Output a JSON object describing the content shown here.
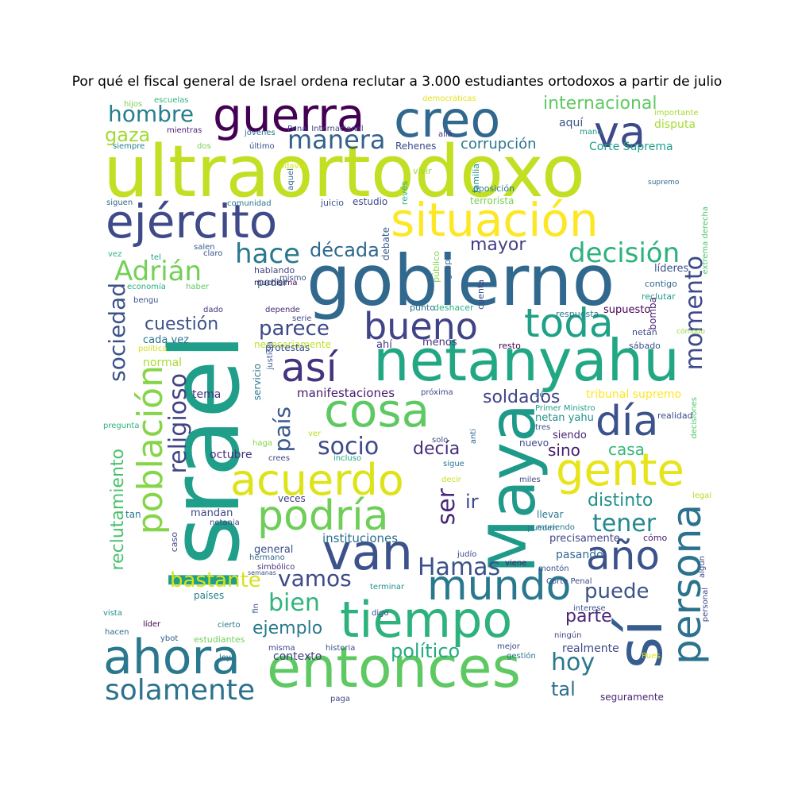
{
  "title": "Por qué el fiscal general de Israel ordena reclutar a 3.000 estudiantes ortodoxos a partir de julio",
  "colors": {
    "background": "#ffffff",
    "title": "#000000"
  },
  "words": [
    {
      "text": "ultraortodoxo",
      "color": "#c2df23"
    },
    {
      "text": "Israel",
      "color": "#1f9e89"
    },
    {
      "text": "gobierno",
      "color": "#31688e"
    },
    {
      "text": "netanyahu",
      "color": "#22a785"
    },
    {
      "text": "Maya",
      "color": "#1f9a8a"
    },
    {
      "text": "entonces",
      "color": "#5ec962"
    },
    {
      "text": "sí",
      "color": "#365d8d"
    },
    {
      "text": "tiempo",
      "color": "#2db27d"
    },
    {
      "text": "ahora",
      "color": "#2a788e"
    },
    {
      "text": "creo",
      "color": "#31688e"
    },
    {
      "text": "van",
      "color": "#3b528b"
    },
    {
      "text": "guerra",
      "color": "#440154"
    },
    {
      "text": "situación",
      "color": "#fde725"
    },
    {
      "text": "ejército",
      "color": "#3e4a89"
    },
    {
      "text": "cosa",
      "color": "#5ec962"
    },
    {
      "text": "gente",
      "color": "#e7e419"
    },
    {
      "text": "persona",
      "color": "#2c728e"
    },
    {
      "text": "acuerdo",
      "color": "#dde318"
    },
    {
      "text": "mundo",
      "color": "#2a788e"
    },
    {
      "text": "podría",
      "color": "#6ece58"
    },
    {
      "text": "año",
      "color": "#3b528b"
    },
    {
      "text": "va",
      "color": "#3e4989"
    },
    {
      "text": "así",
      "color": "#46337f"
    },
    {
      "text": "bueno",
      "color": "#404387"
    },
    {
      "text": "toda",
      "color": "#1fa187"
    },
    {
      "text": "día",
      "color": "#3b528b"
    },
    {
      "text": "población",
      "color": "#86d549"
    },
    {
      "text": "solamente",
      "color": "#2c728e"
    },
    {
      "text": "hace",
      "color": "#2a788e"
    },
    {
      "text": "manera",
      "color": "#34618d"
    },
    {
      "text": "hombre",
      "color": "#277f8e"
    },
    {
      "text": "Adrián",
      "color": "#73d056"
    },
    {
      "text": "decisión",
      "color": "#2db27d"
    },
    {
      "text": "momento",
      "color": "#3e4989"
    },
    {
      "text": "religioso",
      "color": "#414487"
    },
    {
      "text": "sociedad",
      "color": "#3b528b"
    },
    {
      "text": "socio",
      "color": "#3e4a89"
    },
    {
      "text": "tener",
      "color": "#23898e"
    },
    {
      "text": "Hamas",
      "color": "#3b528b"
    },
    {
      "text": "país",
      "color": "#38598c"
    },
    {
      "text": "parece",
      "color": "#3e4989"
    },
    {
      "text": "vamos",
      "color": "#3e4a89"
    },
    {
      "text": "bien",
      "color": "#2fb47c"
    },
    {
      "text": "hoy",
      "color": "#2a788e"
    },
    {
      "text": "puede",
      "color": "#3b528b"
    },
    {
      "text": "bastante",
      "color": "#d8e219"
    },
    {
      "text": "ser",
      "color": "#482878"
    },
    {
      "text": "reclutamiento",
      "color": "#4ac16d"
    },
    {
      "text": "década",
      "color": "#31688e"
    },
    {
      "text": "mayor",
      "color": "#433e85"
    },
    {
      "text": "cuestión",
      "color": "#3b528b"
    },
    {
      "text": "soldados",
      "color": "#404387"
    },
    {
      "text": "gaza",
      "color": "#a2da37"
    },
    {
      "text": "internacional",
      "color": "#5ec962"
    },
    {
      "text": "corrupción",
      "color": "#2a788e"
    },
    {
      "text": "político",
      "color": "#25ab82"
    },
    {
      "text": "ejemplo",
      "color": "#2a788e"
    },
    {
      "text": "parte",
      "color": "#482878"
    },
    {
      "text": "distinto",
      "color": "#21918c"
    },
    {
      "text": "casa",
      "color": "#34b679"
    },
    {
      "text": "sino",
      "color": "#481a6c"
    },
    {
      "text": "decía",
      "color": "#472c7a"
    },
    {
      "text": "ir",
      "color": "#3e4989"
    },
    {
      "text": "tal",
      "color": "#2e6e8e"
    },
    {
      "text": "aquí",
      "color": "#3b528b"
    },
    {
      "text": "Corte Suprema",
      "color": "#1f9e89"
    },
    {
      "text": "disputa",
      "color": "#a5db36"
    },
    {
      "text": "tribunal supremo",
      "color": "#fde725"
    },
    {
      "text": "octubre",
      "color": "#46327e"
    },
    {
      "text": "manifestaciones",
      "color": "#481b6d"
    },
    {
      "text": "instituciones",
      "color": "#2c718e"
    },
    {
      "text": "contexto",
      "color": "#433e85"
    },
    {
      "text": "pasando",
      "color": "#31688e"
    },
    {
      "text": "precisamente",
      "color": "#414487"
    },
    {
      "text": "seguramente",
      "color": "#482576"
    },
    {
      "text": "realmente",
      "color": "#3e4a89"
    },
    {
      "text": "general",
      "color": "#3b528b"
    },
    {
      "text": "tema",
      "color": "#46337f"
    },
    {
      "text": "normal",
      "color": "#a8db34"
    },
    {
      "text": "necesariamente",
      "color": "#bddf26"
    },
    {
      "text": "cada vez",
      "color": "#2c728e"
    },
    {
      "text": "poder",
      "color": "#2a788e"
    },
    {
      "text": "nuevo",
      "color": "#3e4989"
    },
    {
      "text": "siendo",
      "color": "#482475"
    },
    {
      "text": "netan yahu",
      "color": "#21918c"
    },
    {
      "text": "mandan",
      "color": "#3e4989"
    },
    {
      "text": "menos",
      "color": "#46337f"
    },
    {
      "text": "ahí",
      "color": "#453882"
    },
    {
      "text": "supuesto",
      "color": "#440154"
    },
    {
      "text": "bomba",
      "color": "#481f70"
    },
    {
      "text": "líderes",
      "color": "#3b528b"
    },
    {
      "text": "Rehenes",
      "color": "#3e4989"
    },
    {
      "text": "vivir",
      "color": "#a0da39"
    },
    {
      "text": "familia",
      "color": "#21918c"
    },
    {
      "text": "terrorista",
      "color": "#7ad151"
    },
    {
      "text": "oposición",
      "color": "#2a788e"
    },
    {
      "text": "estudio",
      "color": "#3e4989"
    },
    {
      "text": "juicio",
      "color": "#3b528b"
    },
    {
      "text": "revés",
      "color": "#2fb47c"
    },
    {
      "text": "público",
      "color": "#84d44b"
    },
    {
      "text": "grupo",
      "color": "#31688e"
    },
    {
      "text": "debate",
      "color": "#365c8d"
    },
    {
      "text": "mismo",
      "color": "#3b528b"
    },
    {
      "text": "muchísima",
      "color": "#440154"
    },
    {
      "text": "hablando",
      "color": "#414487"
    },
    {
      "text": "deshacer",
      "color": "#2ab07f"
    },
    {
      "text": "punto",
      "color": "#2c728e"
    },
    {
      "text": "cuenta",
      "color": "#3e4989"
    },
    {
      "text": "respuesta",
      "color": "#2a788e"
    },
    {
      "text": "reclutar",
      "color": "#1f9e89"
    },
    {
      "text": "contigo",
      "color": "#31688e"
    },
    {
      "text": "sábado",
      "color": "#3b528b"
    },
    {
      "text": "resto",
      "color": "#440154"
    },
    {
      "text": "netan",
      "color": "#3e4989"
    },
    {
      "text": "cómodo",
      "color": "#95d840"
    },
    {
      "text": "realidad",
      "color": "#3e4989"
    },
    {
      "text": "decisiones",
      "color": "#52c569"
    },
    {
      "text": "extrema derecha",
      "color": "#52c569"
    },
    {
      "text": "supremo",
      "color": "#31688e"
    },
    {
      "text": "mano",
      "color": "#21918c"
    },
    {
      "text": "importante",
      "color": "#a8db34"
    },
    {
      "text": "democráticas",
      "color": "#e5e419"
    },
    {
      "text": "escuelas",
      "color": "#34b679"
    },
    {
      "text": "hijos",
      "color": "#7ad151"
    },
    {
      "text": "mientras",
      "color": "#481f70"
    },
    {
      "text": "siempre",
      "color": "#277f8e"
    },
    {
      "text": "dos",
      "color": "#7ad151"
    },
    {
      "text": "jóvenes",
      "color": "#2c728e"
    },
    {
      "text": "Penal Internacional",
      "color": "#414487"
    },
    {
      "text": "último",
      "color": "#3b528b"
    },
    {
      "text": "allá",
      "color": "#453882"
    },
    {
      "text": "todavía",
      "color": "#dae319"
    },
    {
      "text": "aquel",
      "color": "#31688e"
    },
    {
      "text": "siguen",
      "color": "#31688e"
    },
    {
      "text": "comunidad",
      "color": "#2a788e"
    },
    {
      "text": "vez",
      "color": "#2db27d"
    },
    {
      "text": "tel",
      "color": "#1f9e89"
    },
    {
      "text": "salen",
      "color": "#365d8d"
    },
    {
      "text": "claro",
      "color": "#3b528b"
    },
    {
      "text": "economía",
      "color": "#27ad81"
    },
    {
      "text": "haber",
      "color": "#5ec962"
    },
    {
      "text": "bengu",
      "color": "#3b528b"
    },
    {
      "text": "dado",
      "color": "#46337f"
    },
    {
      "text": "depende",
      "color": "#482878"
    },
    {
      "text": "serie",
      "color": "#3e4989"
    },
    {
      "text": "política",
      "color": "#d0e11c"
    },
    {
      "text": "servicio",
      "color": "#2a788e"
    },
    {
      "text": "justicia",
      "color": "#3b528b"
    },
    {
      "text": "pregunta",
      "color": "#2db27d"
    },
    {
      "text": "ver",
      "color": "#b5de2b"
    },
    {
      "text": "haga",
      "color": "#86d549"
    },
    {
      "text": "crees",
      "color": "#3e4989"
    },
    {
      "text": "incluso",
      "color": "#22a785"
    },
    {
      "text": "solo",
      "color": "#3e4989"
    },
    {
      "text": "anti",
      "color": "#31688e"
    },
    {
      "text": "sé",
      "color": "#2c728e"
    },
    {
      "text": "tres",
      "color": "#3b528b"
    },
    {
      "text": "Primer Ministro",
      "color": "#1f9e89"
    },
    {
      "text": "próxima",
      "color": "#3e4989"
    },
    {
      "text": "sigue",
      "color": "#2a788e"
    },
    {
      "text": "decir",
      "color": "#c8e020"
    },
    {
      "text": "miles",
      "color": "#3e4989"
    },
    {
      "text": "legal",
      "color": "#b5de2b"
    },
    {
      "text": "veces",
      "color": "#433e85"
    },
    {
      "text": "tan",
      "color": "#2a788e"
    },
    {
      "text": "llevar",
      "color": "#2a788e"
    },
    {
      "text": "muriendo",
      "color": "#2a788e"
    },
    {
      "text": "netania",
      "color": "#3e4989"
    },
    {
      "text": "caso",
      "color": "#3e4989"
    },
    {
      "text": "pueden",
      "color": "#2a788e"
    },
    {
      "text": "cómo",
      "color": "#481a6c"
    },
    {
      "text": "hermano",
      "color": "#31688e"
    },
    {
      "text": "simbólico",
      "color": "#46337f"
    },
    {
      "text": "semanas",
      "color": "#3b528b"
    },
    {
      "text": "judío",
      "color": "#3e4989"
    },
    {
      "text": "viene",
      "color": "#481a6c"
    },
    {
      "text": "montón",
      "color": "#3b528b"
    },
    {
      "text": "algún",
      "color": "#3e4989"
    },
    {
      "text": "Corte Penal",
      "color": "#3e4989"
    },
    {
      "text": "terminar",
      "color": "#21918c"
    },
    {
      "text": "países",
      "color": "#277f8e"
    },
    {
      "text": "vista",
      "color": "#21918c"
    },
    {
      "text": "fin",
      "color": "#3b528b"
    },
    {
      "text": "digo",
      "color": "#3e4989"
    },
    {
      "text": "interese",
      "color": "#3b528b"
    },
    {
      "text": "personal",
      "color": "#3e4989"
    },
    {
      "text": "hacen",
      "color": "#31688e"
    },
    {
      "text": "líder",
      "color": "#440154"
    },
    {
      "text": "cierto",
      "color": "#2a788e"
    },
    {
      "text": "ningún",
      "color": "#3e4989"
    },
    {
      "text": "ybot",
      "color": "#34618d"
    },
    {
      "text": "estudiantes",
      "color": "#73d056"
    },
    {
      "text": "mejor",
      "color": "#3e4989"
    },
    {
      "text": "ley",
      "color": "#31688e"
    },
    {
      "text": "misma",
      "color": "#3e4989"
    },
    {
      "text": "historia",
      "color": "#3b528b"
    },
    {
      "text": "gestión",
      "color": "#2a788e"
    },
    {
      "text": "Pues",
      "color": "#e2e418"
    },
    {
      "text": "protestas",
      "color": "#3b528b"
    },
    {
      "text": "paga",
      "color": "#3e4989"
    }
  ]
}
